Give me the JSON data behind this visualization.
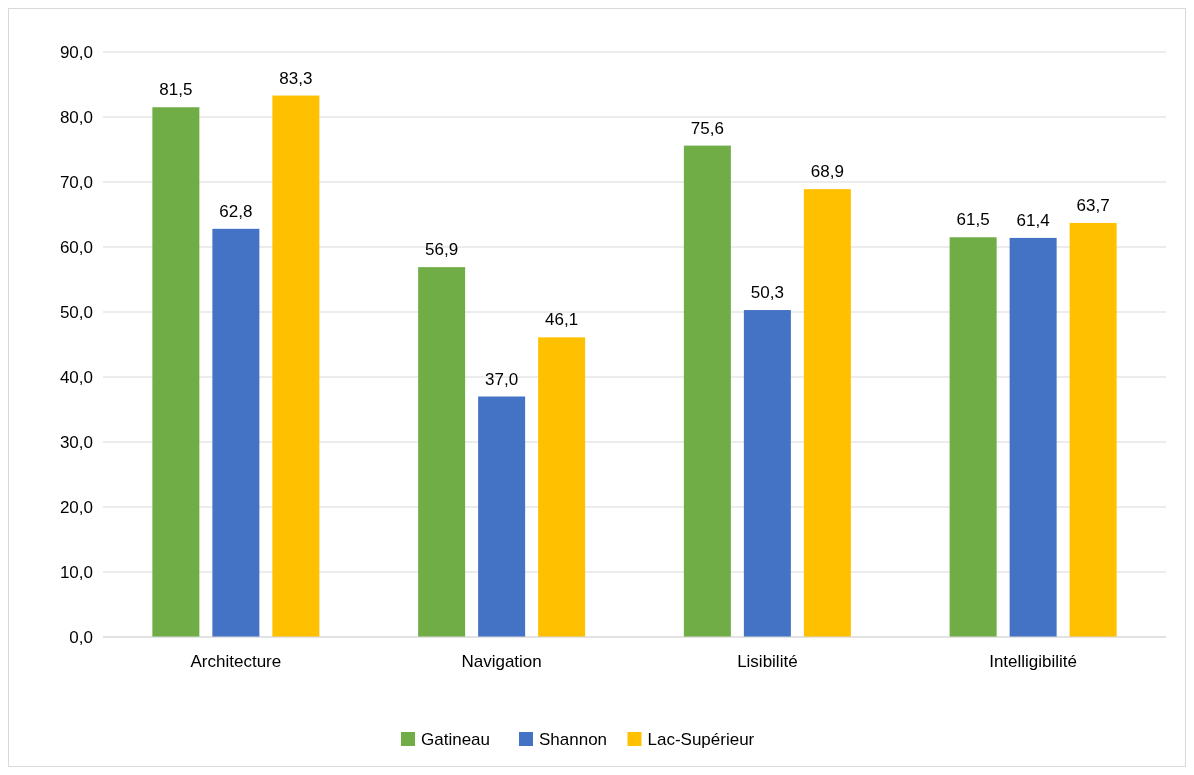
{
  "chart_data": {
    "type": "bar",
    "categories": [
      "Architecture",
      "Navigation",
      "Lisibilité",
      "Intelligibilité"
    ],
    "series": [
      {
        "name": "Gatineau",
        "color": "#70ad47",
        "values": [
          81.5,
          56.9,
          75.6,
          61.5
        ],
        "value_labels": [
          "81,5",
          "56,9",
          "75,6",
          "61,5"
        ]
      },
      {
        "name": "Shannon",
        "color": "#4472c4",
        "values": [
          62.8,
          37.0,
          50.3,
          61.4
        ],
        "value_labels": [
          "62,8",
          "37,0",
          "50,3",
          "61,4"
        ]
      },
      {
        "name": "Lac-Supérieur",
        "color": "#ffc000",
        "values": [
          83.3,
          46.1,
          68.9,
          63.7
        ],
        "value_labels": [
          "83,3",
          "46,1",
          "68,9",
          "63,7"
        ]
      }
    ],
    "ylim": [
      0,
      90
    ],
    "yticks": [
      {
        "value": 0,
        "label": "0,0"
      },
      {
        "value": 10,
        "label": "10,0"
      },
      {
        "value": 20,
        "label": "20,0"
      },
      {
        "value": 30,
        "label": "30,0"
      },
      {
        "value": 40,
        "label": "40,0"
      },
      {
        "value": 50,
        "label": "50,0"
      },
      {
        "value": 60,
        "label": "60,0"
      },
      {
        "value": 70,
        "label": "70,0"
      },
      {
        "value": 80,
        "label": "80,0"
      },
      {
        "value": 90,
        "label": "90,0"
      }
    ],
    "grid": "y",
    "legend": "bottom"
  }
}
